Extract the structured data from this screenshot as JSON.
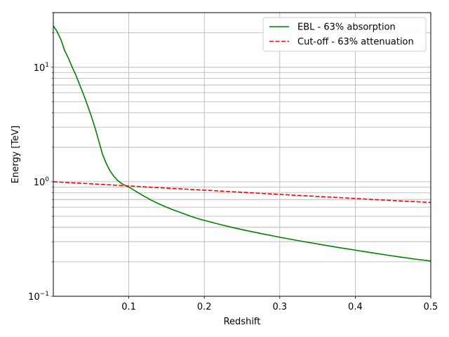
{
  "chart_data": {
    "type": "line",
    "title": "",
    "xlabel": "Redshift",
    "ylabel": "Energy [TeV]",
    "xlim": [
      0.0,
      0.5
    ],
    "ylim": [
      0.1,
      30
    ],
    "yscale": "log",
    "grid": "on (major and minor on log y-axis)",
    "legend_position": "top-right",
    "x_ticks": [
      {
        "value": 0.1,
        "label": "0.1"
      },
      {
        "value": 0.2,
        "label": "0.2"
      },
      {
        "value": 0.3,
        "label": "0.3"
      },
      {
        "value": 0.4,
        "label": "0.4"
      },
      {
        "value": 0.5,
        "label": "0.5"
      }
    ],
    "y_ticks": [
      {
        "value": 0.1,
        "base": "10",
        "exp": "−1"
      },
      {
        "value": 1,
        "base": "10",
        "exp": "0"
      },
      {
        "value": 10,
        "base": "10",
        "exp": "1"
      }
    ],
    "series": [
      {
        "name": "EBL - 63% absorption",
        "color": "#008000",
        "style": "solid",
        "x": [
          0.0,
          0.005,
          0.01,
          0.015,
          0.02,
          0.025,
          0.03,
          0.035,
          0.04,
          0.045,
          0.05,
          0.055,
          0.06,
          0.065,
          0.07,
          0.075,
          0.08,
          0.085,
          0.09,
          0.095,
          0.1,
          0.11,
          0.12,
          0.13,
          0.14,
          0.15,
          0.16,
          0.17,
          0.18,
          0.19,
          0.2,
          0.22,
          0.24,
          0.26,
          0.28,
          0.3,
          0.32,
          0.34,
          0.36,
          0.38,
          0.4,
          0.42,
          0.44,
          0.46,
          0.48,
          0.5
        ],
        "y": [
          23.0,
          20.5,
          17.5,
          14.0,
          12.0,
          10.0,
          8.5,
          7.0,
          5.8,
          4.7,
          3.8,
          3.0,
          2.3,
          1.75,
          1.45,
          1.25,
          1.12,
          1.03,
          0.97,
          0.93,
          0.9,
          0.82,
          0.75,
          0.69,
          0.64,
          0.6,
          0.565,
          0.535,
          0.505,
          0.48,
          0.46,
          0.425,
          0.395,
          0.37,
          0.348,
          0.328,
          0.31,
          0.294,
          0.279,
          0.265,
          0.253,
          0.241,
          0.23,
          0.22,
          0.211,
          0.203
        ]
      },
      {
        "name": "Cut-off - 63% attenuation",
        "color": "#ff0000",
        "style": "dashed",
        "x": [
          0.0,
          0.05,
          0.1,
          0.15,
          0.2,
          0.25,
          0.3,
          0.35,
          0.4,
          0.45,
          0.5
        ],
        "y": [
          1.0,
          0.96,
          0.92,
          0.88,
          0.845,
          0.81,
          0.775,
          0.745,
          0.715,
          0.685,
          0.66
        ]
      }
    ]
  }
}
